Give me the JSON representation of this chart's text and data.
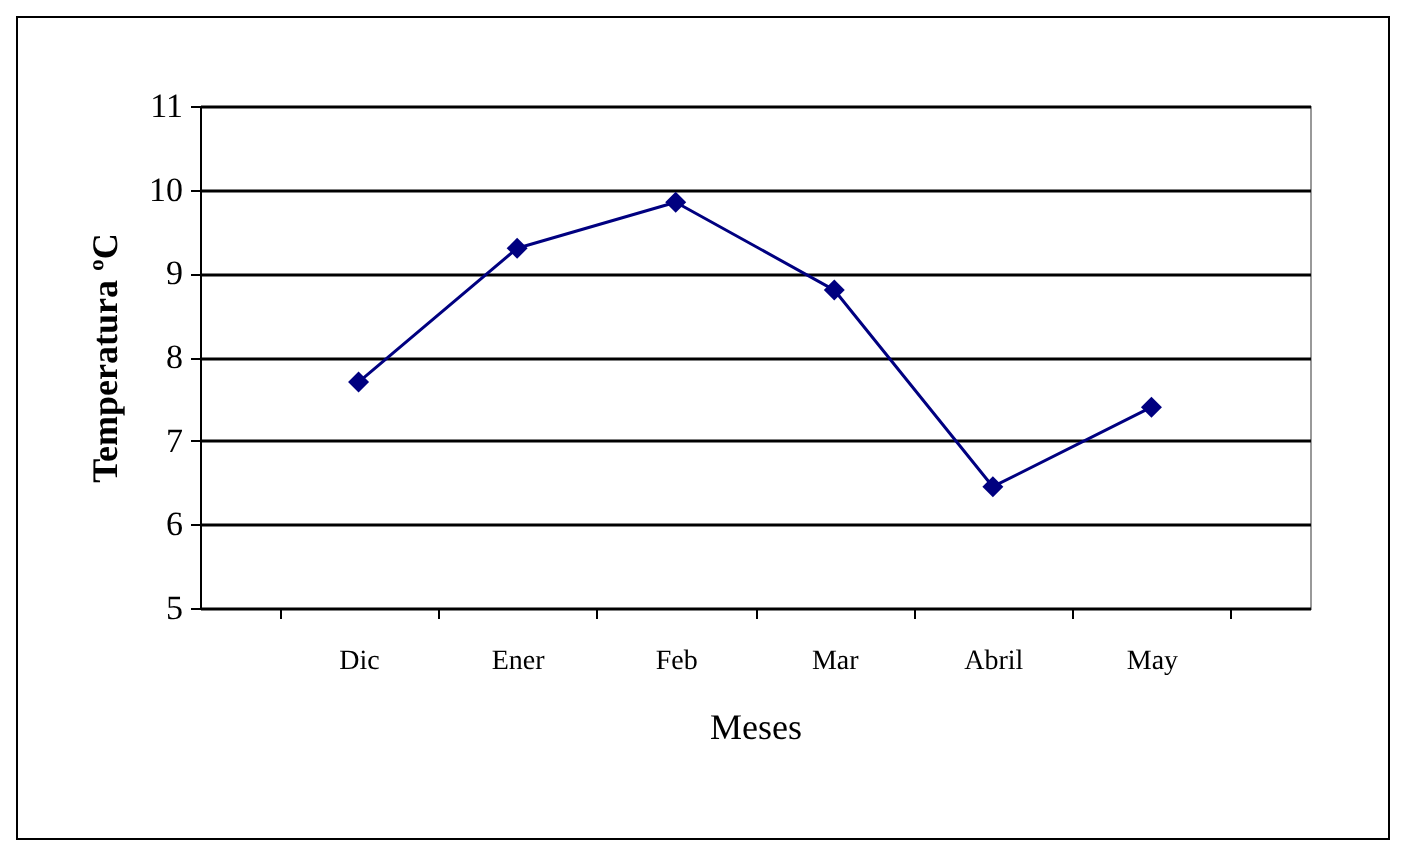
{
  "chart_data": {
    "type": "line",
    "xlabel": "Meses",
    "ylabel": "Temperatura ºC",
    "categories": [
      "Dic",
      "Ener",
      "Feb",
      "Mar",
      "Abril",
      "May"
    ],
    "series": [
      {
        "color": "#000080",
        "values": [
          7.7,
          9.3,
          9.85,
          8.8,
          6.45,
          7.4
        ]
      }
    ],
    "ylim": [
      5,
      11
    ],
    "yticks": [
      5,
      6,
      7,
      8,
      9,
      10,
      11
    ],
    "grid": "y",
    "marker": "diamond",
    "legend": false
  }
}
